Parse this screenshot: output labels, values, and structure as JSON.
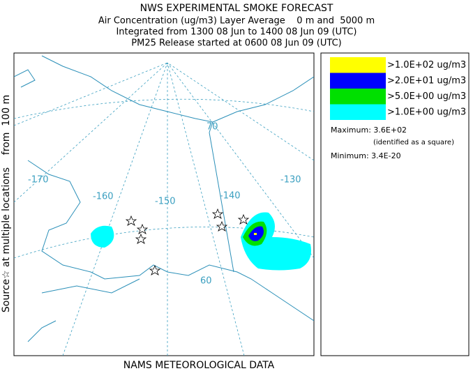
{
  "header": {
    "title": "NWS EXPERIMENTAL SMOKE FORECAST",
    "lines": [
      "Air Concentration (ug/m3) Layer Average    0 m and  5000 m",
      "Integrated from 1300 08 Jun to 1400 08 Jun 09 (UTC)",
      "PM25 Release started at 0600 08 Jun 09 (UTC)"
    ]
  },
  "side_label": "Source☆ at multiple locations    from  100 m",
  "footer": "NAMS METEOROLOGICAL DATA",
  "legend": {
    "items": [
      {
        "label": ">1.0E+02 ug/m3",
        "color": "#ffff00"
      },
      {
        "label": ">2.0E+01 ug/m3",
        "color": "#0000ff"
      },
      {
        "label": ">5.0E+00 ug/m3",
        "color": "#00e000"
      },
      {
        "label": ">1.0E+00 ug/m3",
        "color": "#00ffff"
      }
    ],
    "maximum": "Maximum: 3.6E+02",
    "max_note": "(identified as a square)",
    "minimum": "Minimum: 3.4E-20"
  },
  "map": {
    "labels": [
      "-170",
      "-160",
      "-150",
      "-140",
      "-130",
      "70",
      "60"
    ]
  }
}
